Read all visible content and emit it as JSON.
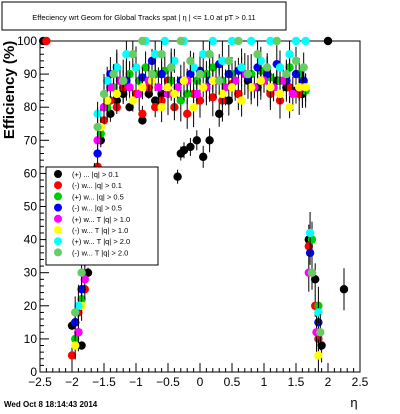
{
  "chart_data": {
    "type": "scatter",
    "title": "Effeciency wrt Geom for Global Tracks spat | η | <= 1.0 at pT > 0.11",
    "xlabel": "η",
    "ylabel": "Efficiency (%)",
    "footer": "Wed Oct  8 18:14:43 2014",
    "xlim": [
      -2.5,
      2.5
    ],
    "ylim": [
      0,
      100
    ],
    "x_ticks": [
      "−2.5",
      "−2",
      "−1.5",
      "−1",
      "−0.5",
      "0",
      "0.5",
      "1",
      "1.5",
      "2",
      "2.5"
    ],
    "y_ticks": [
      "0",
      "10",
      "20",
      "30",
      "40",
      "50",
      "60",
      "70",
      "80",
      "90",
      "100"
    ],
    "legend_position": "left-middle",
    "series": [
      {
        "label": "(+) ...  |q| > 0.1",
        "color": "#000000",
        "points": [
          [
            -2.45,
            100
          ],
          [
            -2.0,
            14
          ],
          [
            -1.95,
            15
          ],
          [
            -1.9,
            12
          ],
          [
            -1.85,
            8
          ],
          [
            -1.75,
            30
          ],
          [
            -1.7,
            45
          ],
          [
            -1.6,
            60
          ],
          [
            -1.55,
            70
          ],
          [
            -1.4,
            78
          ],
          [
            -1.3,
            82
          ],
          [
            -1.2,
            84
          ],
          [
            -1.1,
            80
          ],
          [
            -0.9,
            76
          ],
          [
            -0.8,
            84
          ],
          [
            -0.7,
            82
          ],
          [
            -0.6,
            84
          ],
          [
            -0.5,
            86
          ],
          [
            -0.35,
            59
          ],
          [
            -0.3,
            66
          ],
          [
            -0.25,
            67
          ],
          [
            -0.15,
            68
          ],
          [
            -0.05,
            70
          ],
          [
            0.05,
            65
          ],
          [
            0.15,
            70
          ],
          [
            0.3,
            78
          ],
          [
            0.45,
            82
          ],
          [
            0.6,
            84
          ],
          [
            0.75,
            88
          ],
          [
            0.9,
            86
          ],
          [
            1.05,
            90
          ],
          [
            1.2,
            88
          ],
          [
            1.35,
            86
          ],
          [
            1.5,
            85
          ],
          [
            1.6,
            84
          ],
          [
            1.7,
            40
          ],
          [
            1.8,
            28
          ],
          [
            1.9,
            8
          ],
          [
            2.0,
            100
          ],
          [
            2.25,
            25
          ]
        ]
      },
      {
        "label": "(-) w... |q| > 0.1",
        "color": "#ff0000",
        "points": [
          [
            -2.4,
            100
          ],
          [
            -2.0,
            5
          ],
          [
            -1.9,
            18
          ],
          [
            -1.8,
            25
          ],
          [
            -1.7,
            42
          ],
          [
            -1.6,
            62
          ],
          [
            -1.5,
            76
          ],
          [
            -1.4,
            82
          ],
          [
            -1.3,
            80
          ],
          [
            -1.2,
            86
          ],
          [
            -1.0,
            84
          ],
          [
            -0.9,
            78
          ],
          [
            -0.8,
            86
          ],
          [
            -0.7,
            80
          ],
          [
            -0.6,
            82
          ],
          [
            -0.5,
            88
          ],
          [
            -0.4,
            80
          ],
          [
            -0.2,
            78
          ],
          [
            -0.1,
            84
          ],
          [
            0.0,
            82
          ],
          [
            0.1,
            86
          ],
          [
            0.2,
            83
          ],
          [
            0.35,
            82
          ],
          [
            0.5,
            87
          ],
          [
            0.6,
            84
          ],
          [
            0.8,
            86
          ],
          [
            0.95,
            88
          ],
          [
            1.1,
            84
          ],
          [
            1.25,
            82
          ],
          [
            1.4,
            86
          ],
          [
            1.55,
            84
          ],
          [
            1.7,
            38
          ],
          [
            1.8,
            20
          ],
          [
            1.85,
            10
          ]
        ]
      },
      {
        "label": "(+) w... |q| > 0.5",
        "color": "#00cc00",
        "points": [
          [
            -1.95,
            10
          ],
          [
            -1.85,
            22
          ],
          [
            -1.75,
            35
          ],
          [
            -1.65,
            48
          ],
          [
            -1.55,
            72
          ],
          [
            -1.45,
            80
          ],
          [
            -1.35,
            86
          ],
          [
            -1.25,
            88
          ],
          [
            -1.1,
            90
          ],
          [
            -0.95,
            88
          ],
          [
            -0.85,
            92
          ],
          [
            -0.7,
            90
          ],
          [
            -0.55,
            91
          ],
          [
            -0.45,
            88
          ],
          [
            -0.3,
            82
          ],
          [
            -0.2,
            84
          ],
          [
            -0.05,
            88
          ],
          [
            0.1,
            90
          ],
          [
            0.2,
            92
          ],
          [
            0.35,
            88
          ],
          [
            0.5,
            90
          ],
          [
            0.65,
            92
          ],
          [
            0.8,
            90
          ],
          [
            0.95,
            91
          ],
          [
            1.1,
            89
          ],
          [
            1.25,
            88
          ],
          [
            1.4,
            92
          ],
          [
            1.55,
            90
          ],
          [
            1.65,
            85
          ],
          [
            1.75,
            40
          ],
          [
            1.85,
            20
          ]
        ]
      },
      {
        "label": "(-) w... |q| > 0.5",
        "color": "#0000ff",
        "points": [
          [
            -1.95,
            15
          ],
          [
            -1.85,
            25
          ],
          [
            -1.75,
            42
          ],
          [
            -1.6,
            66
          ],
          [
            -1.5,
            80
          ],
          [
            -1.4,
            90
          ],
          [
            -1.3,
            92
          ],
          [
            -1.15,
            88
          ],
          [
            -1.0,
            92
          ],
          [
            -0.9,
            89
          ],
          [
            -0.75,
            94
          ],
          [
            -0.6,
            90
          ],
          [
            -0.45,
            92
          ],
          [
            -0.3,
            88
          ],
          [
            -0.15,
            90
          ],
          [
            0.0,
            91
          ],
          [
            0.15,
            88
          ],
          [
            0.3,
            93
          ],
          [
            0.45,
            90
          ],
          [
            0.6,
            91
          ],
          [
            0.75,
            89
          ],
          [
            0.9,
            92
          ],
          [
            1.05,
            90
          ],
          [
            1.2,
            93
          ],
          [
            1.35,
            88
          ],
          [
            1.5,
            90
          ],
          [
            1.62,
            88
          ],
          [
            1.72,
            36
          ],
          [
            1.85,
            15
          ]
        ]
      },
      {
        "label": "(+) w... T |q| > 1.0",
        "color": "#ff00ff",
        "points": [
          [
            -1.9,
            12
          ],
          [
            -1.8,
            28
          ],
          [
            -1.7,
            50
          ],
          [
            -1.6,
            70
          ],
          [
            -1.5,
            80
          ],
          [
            -1.4,
            86
          ],
          [
            -1.25,
            88
          ],
          [
            -1.1,
            86
          ],
          [
            -0.95,
            84
          ],
          [
            -0.8,
            88
          ],
          [
            -0.65,
            86
          ],
          [
            -0.5,
            84
          ],
          [
            -0.35,
            86
          ],
          [
            -0.2,
            88
          ],
          [
            -0.05,
            84
          ],
          [
            0.1,
            86
          ],
          [
            0.25,
            88
          ],
          [
            0.4,
            86
          ],
          [
            0.55,
            88
          ],
          [
            0.7,
            90
          ],
          [
            0.85,
            86
          ],
          [
            1.0,
            88
          ],
          [
            1.15,
            86
          ],
          [
            1.3,
            88
          ],
          [
            1.45,
            84
          ],
          [
            1.6,
            86
          ],
          [
            1.7,
            30
          ],
          [
            1.82,
            12
          ]
        ]
      },
      {
        "label": "(-) w... T |q| > 1.0",
        "color": "#ffff00",
        "points": [
          [
            -1.95,
            8
          ],
          [
            -1.85,
            20
          ],
          [
            -1.75,
            38
          ],
          [
            -1.65,
            58
          ],
          [
            -1.55,
            74
          ],
          [
            -1.45,
            82
          ],
          [
            -1.3,
            84
          ],
          [
            -1.2,
            88
          ],
          [
            -1.05,
            82
          ],
          [
            -0.9,
            86
          ],
          [
            -0.75,
            88
          ],
          [
            -0.6,
            80
          ],
          [
            -0.5,
            86
          ],
          [
            -0.4,
            84
          ],
          [
            -0.25,
            88
          ],
          [
            -0.1,
            80
          ],
          [
            0.05,
            86
          ],
          [
            0.2,
            88
          ],
          [
            0.35,
            84
          ],
          [
            0.5,
            86
          ],
          [
            0.65,
            82
          ],
          [
            0.8,
            86
          ],
          [
            0.95,
            88
          ],
          [
            1.1,
            86
          ],
          [
            1.25,
            84
          ],
          [
            1.4,
            80
          ],
          [
            1.55,
            86
          ],
          [
            1.65,
            86
          ],
          [
            1.75,
            30
          ],
          [
            1.85,
            5
          ]
        ]
      },
      {
        "label": "(+) w... T |q| > 2.0",
        "color": "#00ffff",
        "points": [
          [
            -1.9,
            20
          ],
          [
            -1.8,
            35
          ],
          [
            -1.7,
            55
          ],
          [
            -1.6,
            78
          ],
          [
            -1.45,
            88
          ],
          [
            -1.3,
            92
          ],
          [
            -1.15,
            96
          ],
          [
            -1.0,
            92
          ],
          [
            -0.85,
            100
          ],
          [
            -0.7,
            96
          ],
          [
            -0.55,
            100
          ],
          [
            -0.4,
            94
          ],
          [
            -0.25,
            100
          ],
          [
            -0.1,
            92
          ],
          [
            0.05,
            96
          ],
          [
            0.2,
            100
          ],
          [
            0.35,
            94
          ],
          [
            0.5,
            100
          ],
          [
            0.65,
            92
          ],
          [
            0.8,
            100
          ],
          [
            0.95,
            94
          ],
          [
            1.1,
            100
          ],
          [
            1.25,
            92
          ],
          [
            1.4,
            96
          ],
          [
            1.5,
            100
          ],
          [
            1.65,
            100
          ],
          [
            1.72,
            42
          ],
          [
            1.85,
            18
          ]
        ]
      },
      {
        "label": "(-) w... T |q| > 2.0",
        "color": "#66cc66",
        "points": [
          [
            -1.95,
            18
          ],
          [
            -1.85,
            30
          ],
          [
            -1.7,
            52
          ],
          [
            -1.6,
            74
          ],
          [
            -1.5,
            84
          ],
          [
            -1.35,
            90
          ],
          [
            -1.2,
            88
          ],
          [
            -1.05,
            96
          ],
          [
            -0.9,
            100
          ],
          [
            -0.75,
            90
          ],
          [
            -0.6,
            96
          ],
          [
            -0.45,
            92
          ],
          [
            -0.3,
            100
          ],
          [
            -0.15,
            94
          ],
          [
            0.0,
            90
          ],
          [
            0.15,
            96
          ],
          [
            0.3,
            88
          ],
          [
            0.45,
            94
          ],
          [
            0.6,
            100
          ],
          [
            0.75,
            90
          ],
          [
            0.9,
            96
          ],
          [
            1.05,
            92
          ],
          [
            1.2,
            100
          ],
          [
            1.35,
            90
          ],
          [
            1.5,
            94
          ],
          [
            1.62,
            92
          ],
          [
            1.75,
            30
          ],
          [
            1.88,
            12
          ]
        ]
      }
    ]
  }
}
